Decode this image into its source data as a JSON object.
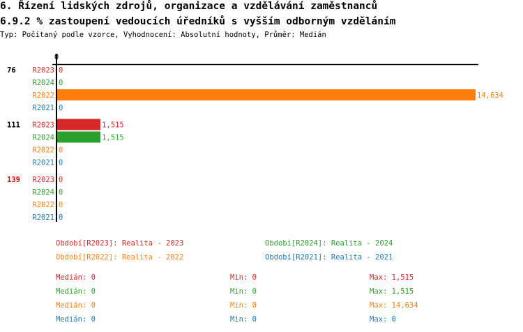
{
  "header": {
    "title": "6. Řízení lidských zdrojů, organizace a vzdělávání zaměstnanců",
    "subtitle": "6.9.2 % zastoupení vedoucích úředníků s vyšším odborným vzděláním",
    "info": "Typ: Počítaný podle vzorce, Vyhodnocení: Absolutní hodnoty, Průměr: Medián"
  },
  "colors": {
    "R2023": "#d62728",
    "R2024": "#2ca02c",
    "R2022": "#ff7f0e",
    "R2021": "#1f77b4"
  },
  "chart_data": {
    "type": "bar",
    "orientation": "horizontal",
    "x_tick_labels": [
      "0"
    ],
    "xlim": [
      0,
      14634
    ],
    "groups": [
      {
        "label": "76",
        "label_color": "#000000",
        "bars": [
          {
            "series": "R2023",
            "value": 0,
            "value_label": "0"
          },
          {
            "series": "R2024",
            "value": 0,
            "value_label": "0"
          },
          {
            "series": "R2022",
            "value": 14634,
            "value_label": "14,634"
          },
          {
            "series": "R2021",
            "value": 0,
            "value_label": "0"
          }
        ]
      },
      {
        "label": "111",
        "label_color": "#000000",
        "bars": [
          {
            "series": "R2023",
            "value": 1515,
            "value_label": "1,515"
          },
          {
            "series": "R2024",
            "value": 1515,
            "value_label": "1,515"
          },
          {
            "series": "R2022",
            "value": 0,
            "value_label": "0"
          },
          {
            "series": "R2021",
            "value": 0,
            "value_label": "0"
          }
        ]
      },
      {
        "label": "139",
        "label_color": "#e00000",
        "bars": [
          {
            "series": "R2023",
            "value": 0,
            "value_label": "0"
          },
          {
            "series": "R2024",
            "value": 0,
            "value_label": "0"
          },
          {
            "series": "R2022",
            "value": 0,
            "value_label": "0"
          },
          {
            "series": "R2021",
            "value": 0,
            "value_label": "0"
          }
        ]
      }
    ],
    "legend": [
      {
        "series": "R2023",
        "text": "Období[R2023]: Realita - 2023"
      },
      {
        "series": "R2024",
        "text": "Období[R2024]: Realita - 2024"
      },
      {
        "series": "R2022",
        "text": "Období[R2022]: Realita - 2022"
      },
      {
        "series": "R2021",
        "text": "Období[R2021]: Realita - 2021"
      }
    ],
    "stats": [
      {
        "series": "R2023",
        "median": "Medián: 0",
        "min": "Min: 0",
        "max": "Max: 1,515"
      },
      {
        "series": "R2024",
        "median": "Medián: 0",
        "min": "Min: 0",
        "max": "Max: 1,515"
      },
      {
        "series": "R2022",
        "median": "Medián: 0",
        "min": "Min: 0",
        "max": "Max: 14,634"
      },
      {
        "series": "R2021",
        "median": "Medián: 0",
        "min": "Min: 0",
        "max": "Max: 0"
      }
    ]
  }
}
